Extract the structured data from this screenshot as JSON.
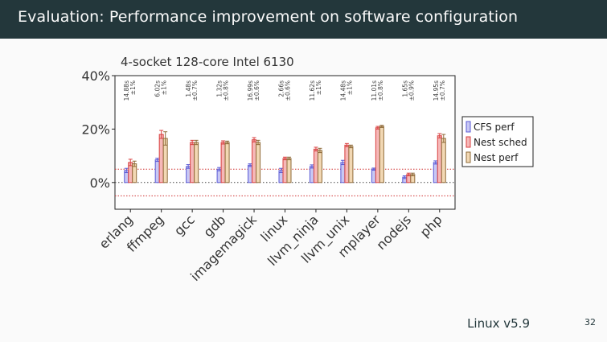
{
  "slide": {
    "title": "Evaluation: Performance improvement on software configuration",
    "footer_version": "Linux v5.9",
    "page_number": "32"
  },
  "colors": {
    "header_bg": "#23373b",
    "cfs": "#5b5bd6",
    "cfs_fill": "#c8c8f4",
    "nest_sched": "#d94040",
    "nest_sched_fill": "#f6b8b8",
    "nest_perf": "#8f6b3a",
    "nest_perf_fill": "#f2d8b4",
    "reference_line": "#d03030"
  },
  "chart_data": {
    "type": "bar",
    "title": "4-socket 128-core Intel 6130",
    "ylabel": "",
    "xlabel": "",
    "ylim": [
      -10,
      40
    ],
    "yticks": [
      "0%",
      "20%",
      "40%"
    ],
    "ytick_values": [
      0,
      20,
      40
    ],
    "reference_lines": [
      5,
      0,
      -5
    ],
    "categories": [
      "erlang",
      "ffmpeg",
      "gcc",
      "gdb",
      "imagemagick",
      "linux",
      "llvm_ninja",
      "llvm_unix",
      "mplayer",
      "nodejs",
      "php"
    ],
    "baseline_labels": [
      [
        "14.88s",
        "±1%"
      ],
      [
        "6.02s",
        "±1%"
      ],
      [
        "1.48s",
        "±0.7%"
      ],
      [
        "1.32s",
        "±0.8%"
      ],
      [
        "16.99s",
        "±0.6%"
      ],
      [
        "2.66s",
        "±0.6%"
      ],
      [
        "11.62s",
        "±1%"
      ],
      [
        "14.48s",
        "±1%"
      ],
      [
        "11.01s",
        "±0.8%"
      ],
      [
        "1.65s",
        "±0.9%"
      ],
      [
        "14.95s",
        "±0.7%"
      ]
    ],
    "legend_position": "right",
    "series": [
      {
        "name": "CFS perf",
        "values": [
          4.5,
          8.5,
          6,
          5,
          6.5,
          4.5,
          6,
          7.5,
          5,
          2,
          7.5
        ],
        "errors": [
          0.8,
          0.6,
          0.7,
          0.6,
          0.5,
          0.8,
          0.6,
          0.8,
          0.4,
          0.5,
          0.6
        ]
      },
      {
        "name": "Nest sched",
        "values": [
          7.5,
          18,
          15,
          15,
          16,
          9,
          12.5,
          14,
          20.5,
          3,
          17.5
        ],
        "errors": [
          1.2,
          1.5,
          0.8,
          0.6,
          0.8,
          0.5,
          0.7,
          0.6,
          0.5,
          0.5,
          0.8
        ]
      },
      {
        "name": "Nest perf",
        "values": [
          7,
          16.5,
          15,
          15,
          15,
          9,
          12,
          13.5,
          21,
          3,
          16.5
        ],
        "errors": [
          1.0,
          2.5,
          0.8,
          0.5,
          0.8,
          0.5,
          0.8,
          0.5,
          0.4,
          0.5,
          1.5
        ]
      }
    ]
  }
}
